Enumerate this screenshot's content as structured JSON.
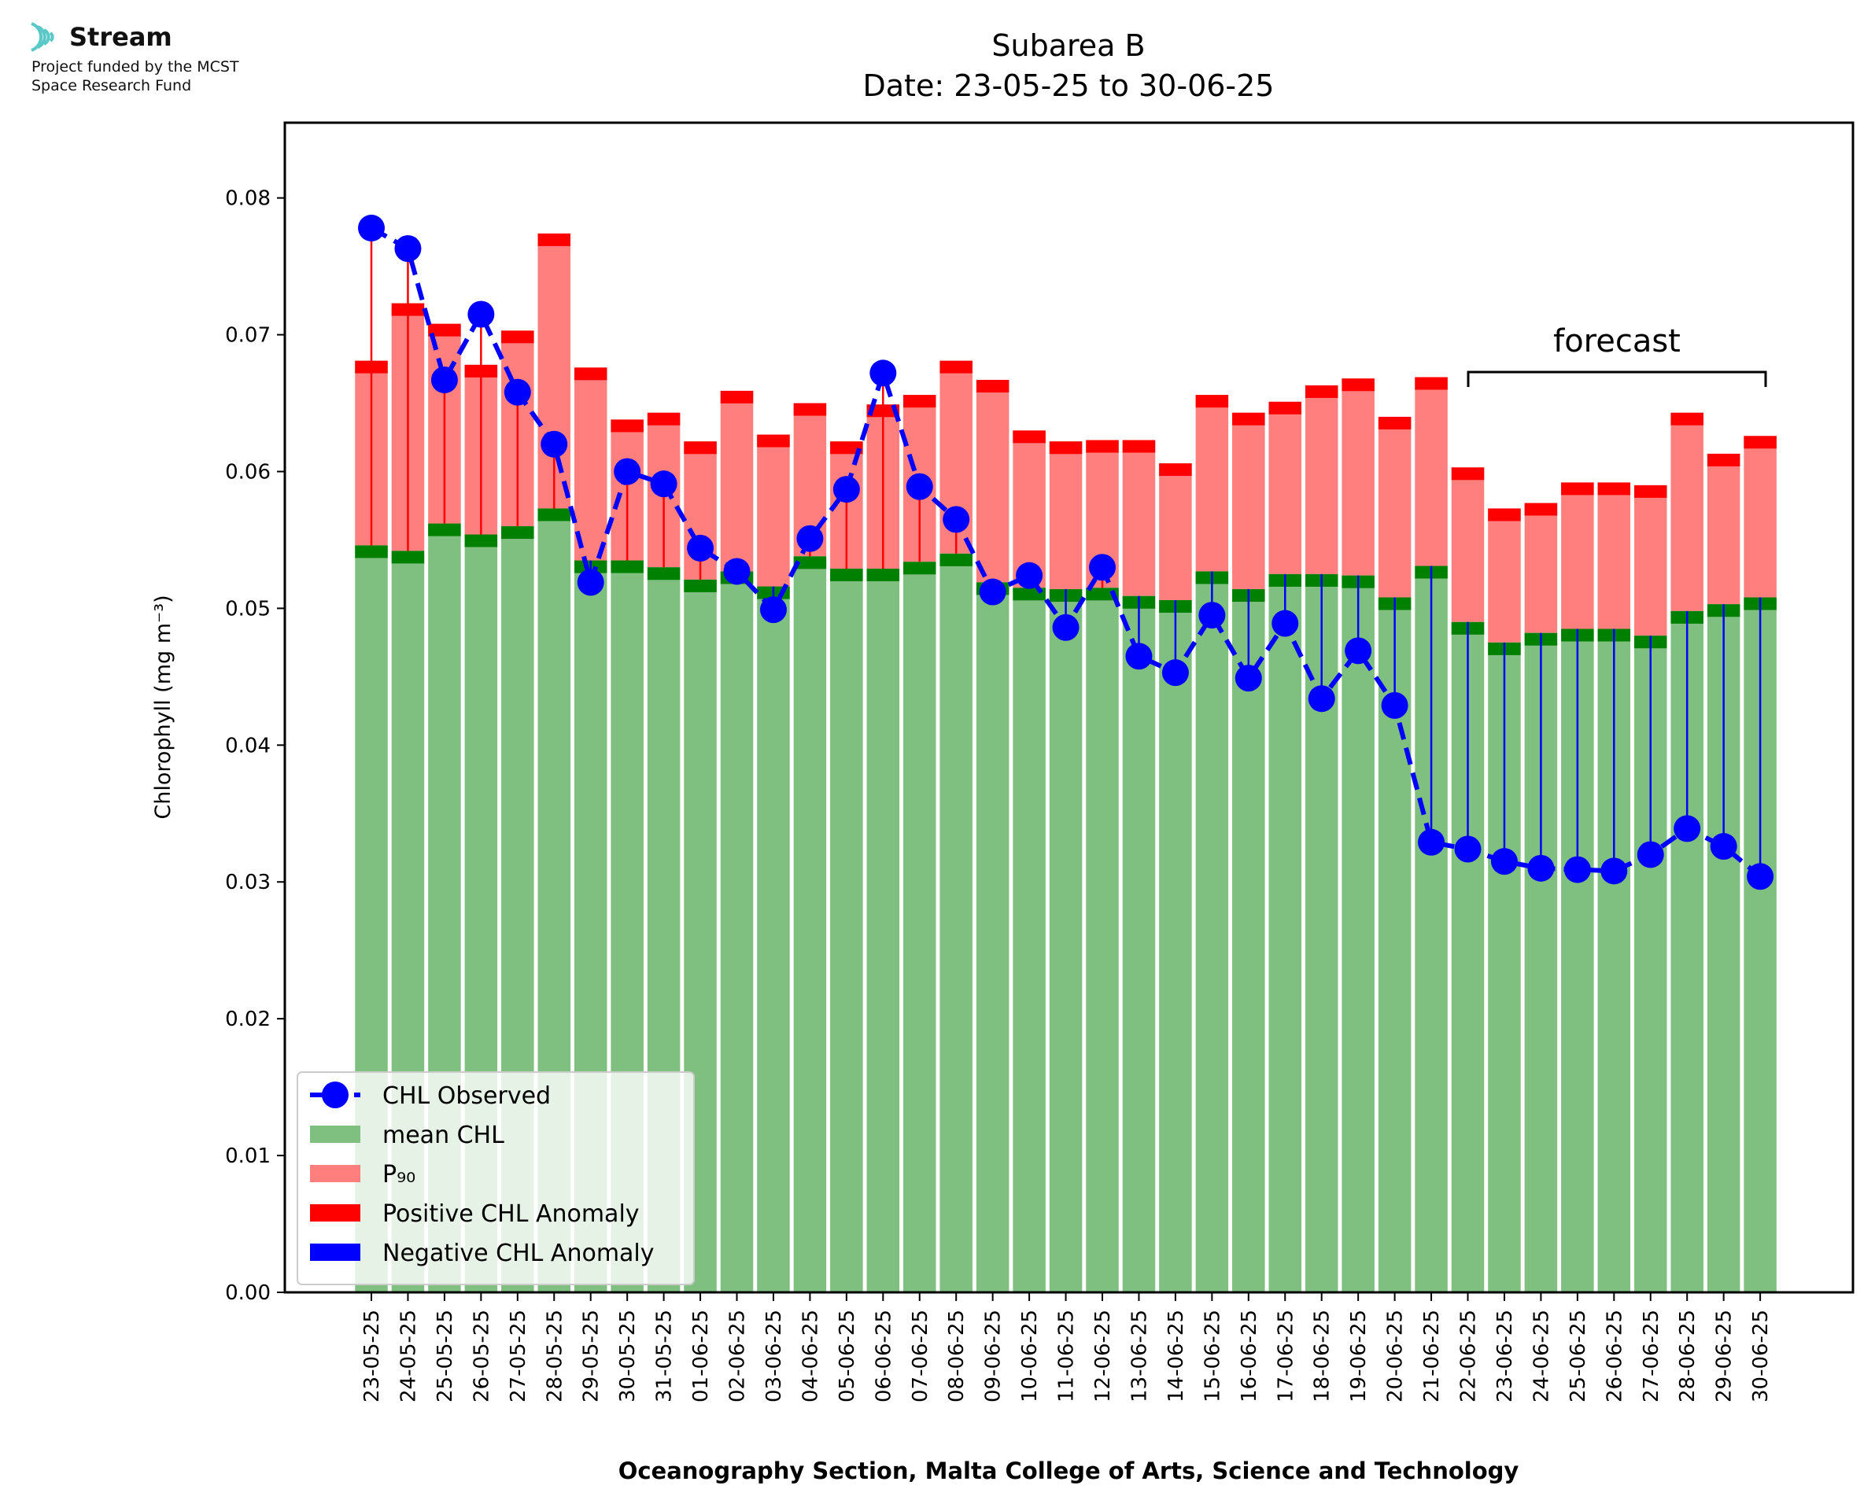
{
  "logo": {
    "name": "Stream",
    "line1": "Project funded by the MCST",
    "line2": "Space Research Fund",
    "accent": "#5bc8c8"
  },
  "chart_data": {
    "type": "bar",
    "title": "Subarea B",
    "subtitle": "Date: 23-05-25 to 30-06-25",
    "xlabel": "Oceanography Section, Malta College of Arts, Science and Technology",
    "ylabel": "Chlorophyll (mg m⁻³)",
    "ylim": [
      0,
      0.0855
    ],
    "yticks": [
      0.0,
      0.01,
      0.02,
      0.03,
      0.04,
      0.05,
      0.06,
      0.07,
      0.08
    ],
    "ytick_labels": [
      "0.00",
      "0.01",
      "0.02",
      "0.03",
      "0.04",
      "0.05",
      "0.06",
      "0.07",
      "0.08"
    ],
    "categories": [
      "23-05-25",
      "24-05-25",
      "25-05-25",
      "26-05-25",
      "27-05-25",
      "28-05-25",
      "29-05-25",
      "30-05-25",
      "31-05-25",
      "01-06-25",
      "02-06-25",
      "03-06-25",
      "04-06-25",
      "05-06-25",
      "06-06-25",
      "07-06-25",
      "08-06-25",
      "09-06-25",
      "10-06-25",
      "11-06-25",
      "12-06-25",
      "13-06-25",
      "14-06-25",
      "15-06-25",
      "16-06-25",
      "17-06-25",
      "18-06-25",
      "19-06-25",
      "20-06-25",
      "21-06-25",
      "22-06-25",
      "23-06-25",
      "24-06-25",
      "25-06-25",
      "26-06-25",
      "27-06-25",
      "28-06-25",
      "29-06-25",
      "30-06-25"
    ],
    "series": [
      {
        "name": "mean CHL",
        "color": "#7fbf7f",
        "edge_color": "#008000",
        "values": [
          0.0546,
          0.0542,
          0.0562,
          0.0554,
          0.056,
          0.0573,
          0.0535,
          0.0535,
          0.053,
          0.0521,
          0.0527,
          0.0516,
          0.0538,
          0.0529,
          0.0529,
          0.0534,
          0.054,
          0.0519,
          0.0515,
          0.0514,
          0.0515,
          0.0509,
          0.0506,
          0.0527,
          0.0514,
          0.0525,
          0.0525,
          0.0524,
          0.0508,
          0.0531,
          0.049,
          0.0475,
          0.0482,
          0.0485,
          0.0485,
          0.048,
          0.0498,
          0.0503,
          0.0508
        ]
      },
      {
        "name": "P₉₀",
        "color": "#ff7f7f",
        "edge_color": "#ff0000",
        "values": [
          0.0681,
          0.0723,
          0.0708,
          0.0678,
          0.0703,
          0.0774,
          0.0676,
          0.0638,
          0.0643,
          0.0622,
          0.0659,
          0.0627,
          0.065,
          0.0622,
          0.0649,
          0.0656,
          0.0681,
          0.0667,
          0.063,
          0.0622,
          0.0623,
          0.0623,
          0.0606,
          0.0656,
          0.0643,
          0.0651,
          0.0663,
          0.0668,
          0.064,
          0.0669,
          0.0603,
          0.0573,
          0.0577,
          0.0592,
          0.0592,
          0.059,
          0.0643,
          0.0613,
          0.0626
        ]
      },
      {
        "name": "CHL Observed",
        "color": "#0000ff",
        "values": [
          0.0778,
          0.0763,
          0.0667,
          0.0715,
          0.0658,
          0.062,
          0.0519,
          0.06,
          0.0591,
          0.0544,
          0.0527,
          0.0499,
          0.0551,
          0.0587,
          0.0672,
          0.0589,
          0.0565,
          0.0512,
          0.0524,
          0.0486,
          0.053,
          0.0465,
          0.0453,
          0.0495,
          0.0449,
          0.0489,
          0.0434,
          0.0469,
          0.0429,
          0.0329,
          0.0324,
          0.0315,
          0.031,
          0.0309,
          0.0308,
          0.032,
          0.0339,
          0.0326,
          0.0304
        ]
      }
    ],
    "legend": {
      "position": "lower-left",
      "entries": [
        "CHL Observed",
        "mean CHL",
        "P₉₀",
        "Positive CHL Anomaly",
        "Negative CHL Anomaly"
      ],
      "colors": [
        "#0000ff",
        "#7fbf7f",
        "#ff7f7f",
        "#ff0000",
        "#0000ff"
      ]
    },
    "annotation": {
      "text": "forecast",
      "start": "22-06-25",
      "end": "30-06-25"
    },
    "grid": false
  }
}
